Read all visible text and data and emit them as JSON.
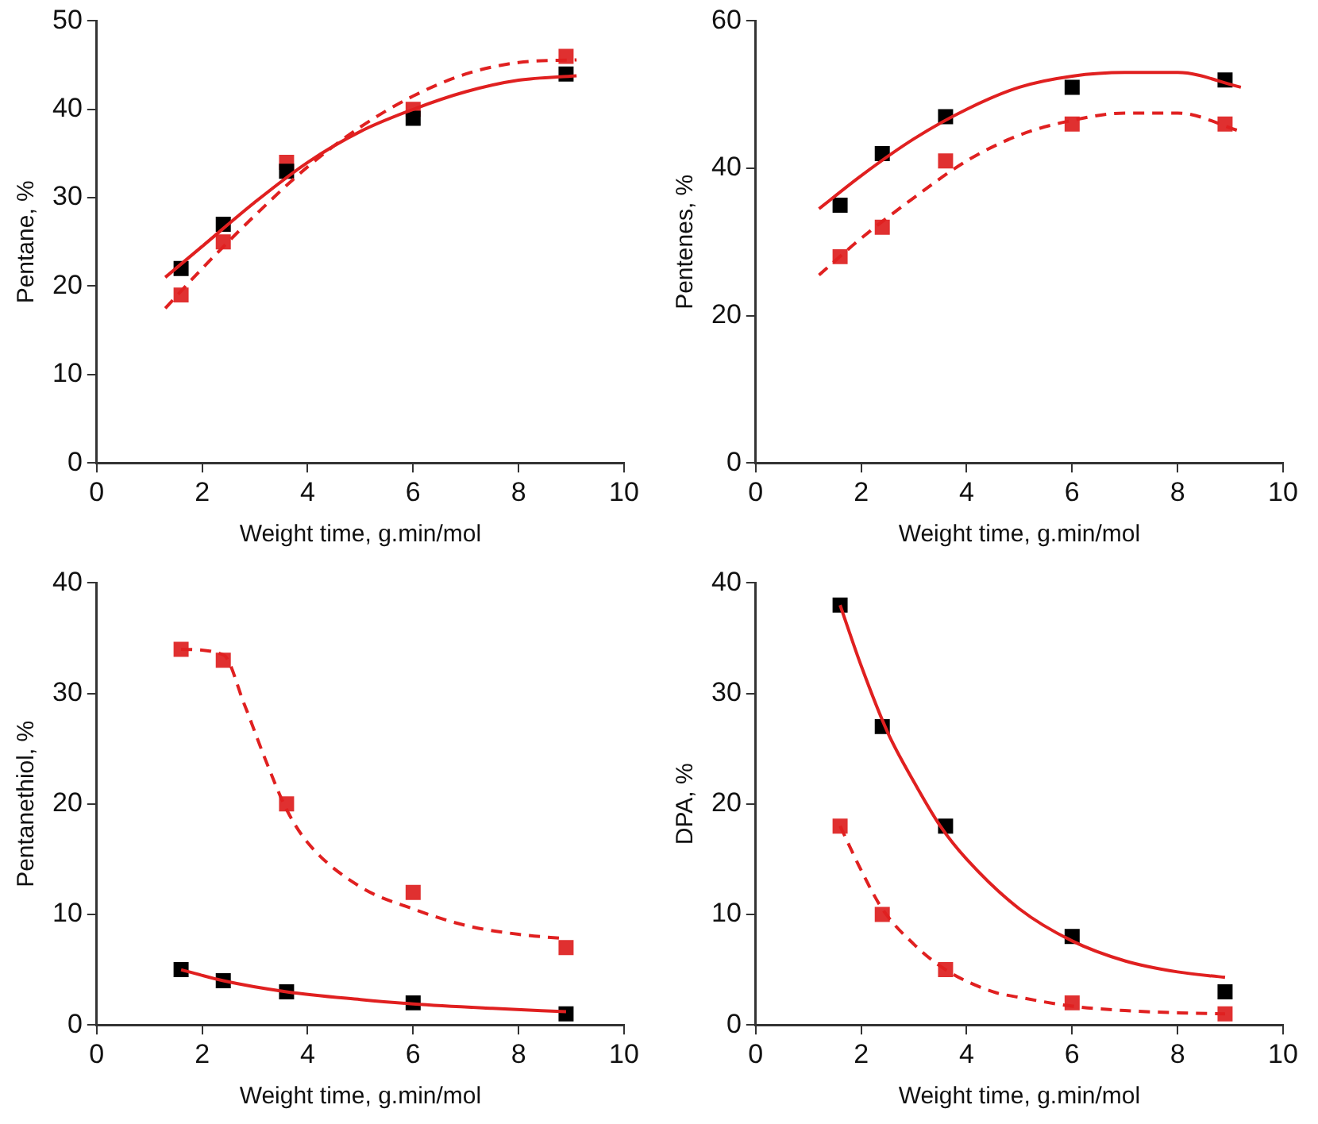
{
  "chart_data": [
    {
      "type": "scatter",
      "xlabel": "Weight time, g.min/mol",
      "ylabel": "Pentane, %",
      "xlim": [
        0,
        10
      ],
      "xticks": [
        0,
        2,
        4,
        6,
        8,
        10
      ],
      "ylim": [
        0,
        50
      ],
      "yticks": [
        0,
        10,
        20,
        30,
        40,
        50
      ],
      "grid": false,
      "legend": false,
      "x": [
        1.6,
        2.4,
        3.6,
        6.0,
        8.9
      ],
      "series": [
        {
          "color": "#000000",
          "marker": "square",
          "values": [
            22,
            27,
            33,
            39,
            44
          ]
        },
        {
          "color": "#e03030",
          "marker": "square",
          "values": [
            19,
            25,
            34,
            40,
            46
          ]
        },
        {
          "type": "line",
          "color": "#e02020",
          "line_style": "solid",
          "marker": "none",
          "x": [
            1.3,
            2,
            3,
            4,
            5,
            6,
            7,
            8,
            9.1
          ],
          "values": [
            21,
            24.5,
            29.5,
            34,
            37.5,
            40,
            42,
            43.3,
            43.8
          ]
        },
        {
          "type": "line",
          "color": "#e02020",
          "line_style": "dashed",
          "marker": "none",
          "x": [
            1.3,
            2,
            3,
            4,
            5,
            6,
            7,
            8,
            9.1
          ],
          "values": [
            17.5,
            22,
            28,
            33.5,
            38,
            41.5,
            44,
            45.3,
            45.6
          ]
        }
      ]
    },
    {
      "type": "scatter",
      "xlabel": "Weight time, g.min/mol",
      "ylabel": "Pentenes, %",
      "xlim": [
        0,
        10
      ],
      "xticks": [
        0,
        2,
        4,
        6,
        8,
        10
      ],
      "ylim": [
        0,
        60
      ],
      "yticks": [
        0,
        20,
        40,
        60
      ],
      "grid": false,
      "legend": false,
      "x": [
        1.6,
        2.4,
        3.6,
        6.0,
        8.9
      ],
      "series": [
        {
          "color": "#000000",
          "marker": "square",
          "values": [
            35,
            42,
            47,
            51,
            52
          ]
        },
        {
          "color": "#e03030",
          "marker": "square",
          "values": [
            28,
            32,
            41,
            46,
            46
          ]
        },
        {
          "type": "line",
          "color": "#e02020",
          "line_style": "solid",
          "marker": "none",
          "x": [
            1.2,
            2,
            3,
            4,
            5,
            6,
            7,
            8,
            9.2
          ],
          "values": [
            34.5,
            39,
            44,
            48,
            51,
            52.5,
            53,
            53,
            51
          ]
        },
        {
          "type": "line",
          "color": "#e02020",
          "line_style": "dashed",
          "marker": "none",
          "x": [
            1.2,
            2,
            3,
            4,
            5,
            6,
            7,
            8,
            9.2
          ],
          "values": [
            25.5,
            30.5,
            36,
            41,
            44.5,
            46.5,
            47.5,
            47.5,
            45
          ]
        }
      ]
    },
    {
      "type": "scatter",
      "xlabel": "Weight time, g.min/mol",
      "ylabel": "Pentanethiol, %",
      "xlim": [
        0,
        10
      ],
      "xticks": [
        0,
        2,
        4,
        6,
        8,
        10
      ],
      "ylim": [
        0,
        40
      ],
      "yticks": [
        0,
        10,
        20,
        30,
        40
      ],
      "grid": false,
      "legend": false,
      "x": [
        1.6,
        2.4,
        3.6,
        6.0,
        8.9
      ],
      "series": [
        {
          "color": "#000000",
          "marker": "square",
          "values": [
            5,
            4,
            3,
            2,
            1
          ]
        },
        {
          "color": "#e03030",
          "marker": "square",
          "values": [
            34,
            33,
            20,
            12,
            7
          ]
        },
        {
          "type": "line",
          "color": "#e02020",
          "line_style": "solid",
          "marker": "none",
          "x": [
            1.6,
            2.4,
            3.6,
            5,
            6,
            7.5,
            8.9
          ],
          "values": [
            5,
            4,
            3,
            2.3,
            1.9,
            1.5,
            1.2
          ]
        },
        {
          "type": "line",
          "color": "#e02020",
          "line_style": "dashed",
          "marker": "none",
          "x": [
            1.6,
            2.4,
            2.8,
            3.2,
            3.6,
            4,
            5,
            6,
            7,
            8,
            8.9
          ],
          "values": [
            34,
            33.5,
            29,
            24,
            19.5,
            16.5,
            12.5,
            10.5,
            9,
            8.2,
            7.8
          ]
        }
      ]
    },
    {
      "type": "scatter",
      "xlabel": "Weight time, g.min/mol",
      "ylabel": "DPA, %",
      "xlim": [
        0,
        10
      ],
      "xticks": [
        0,
        2,
        4,
        6,
        8,
        10
      ],
      "ylim": [
        0,
        40
      ],
      "yticks": [
        0,
        10,
        20,
        30,
        40
      ],
      "grid": false,
      "legend": false,
      "x": [
        1.6,
        2.4,
        3.6,
        6.0,
        8.9
      ],
      "series": [
        {
          "color": "#000000",
          "marker": "square",
          "values": [
            38,
            27,
            18,
            8,
            3
          ]
        },
        {
          "color": "#e03030",
          "marker": "square",
          "values": [
            18,
            10,
            5,
            2,
            1
          ]
        },
        {
          "type": "line",
          "color": "#e02020",
          "line_style": "solid",
          "marker": "none",
          "x": [
            1.6,
            2,
            2.5,
            3,
            3.5,
            4,
            5,
            6,
            7,
            8,
            8.9
          ],
          "values": [
            38,
            32.5,
            26.5,
            22,
            18,
            15,
            10.5,
            7.6,
            5.8,
            4.8,
            4.3
          ]
        },
        {
          "type": "line",
          "color": "#e02020",
          "line_style": "dashed",
          "marker": "none",
          "x": [
            1.6,
            2,
            2.4,
            3,
            3.6,
            4.5,
            5,
            6,
            7,
            8,
            8.9
          ],
          "values": [
            18,
            14,
            10.5,
            7.3,
            5,
            3,
            2.5,
            1.7,
            1.3,
            1.1,
            1
          ]
        }
      ]
    }
  ]
}
